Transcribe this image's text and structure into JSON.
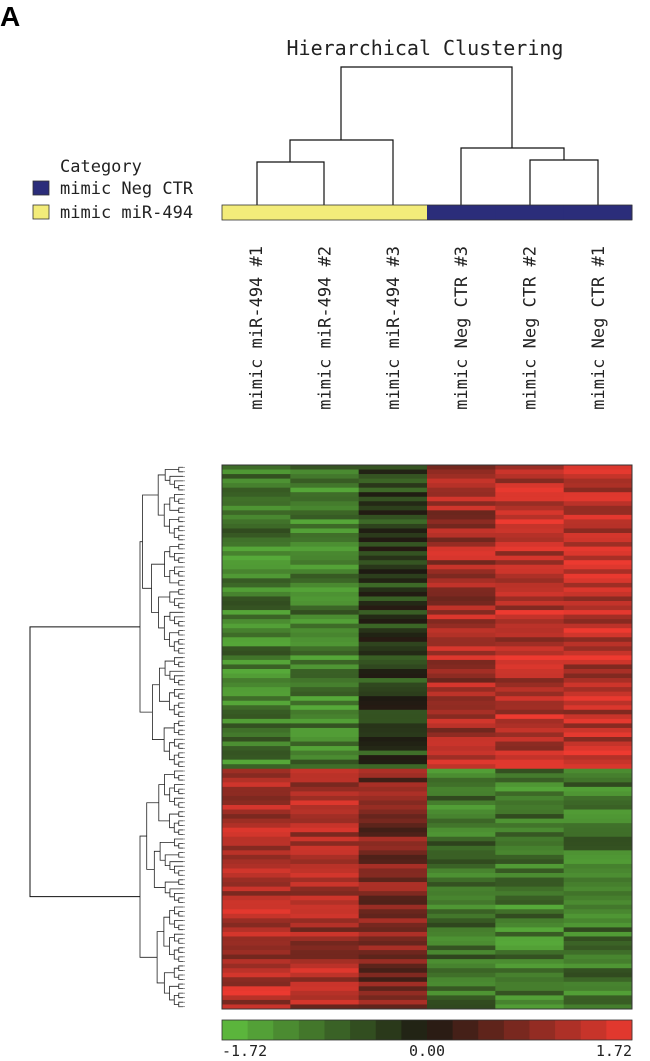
{
  "panel_label": "A",
  "chart_data": {
    "type": "heatmap",
    "title": "Hierarchical Clustering",
    "legend": {
      "title": "Category",
      "items": [
        {
          "label": "mimic Neg CTR",
          "color": "#2b2d7a"
        },
        {
          "label": "mimic miR-494",
          "color": "#f3ec7a"
        }
      ],
      "placement": "top-left"
    },
    "columns": [
      {
        "label": "mimic miR-494 #1",
        "category": "mimic miR-494"
      },
      {
        "label": "mimic miR-494 #2",
        "category": "mimic miR-494"
      },
      {
        "label": "mimic miR-494 #3",
        "category": "mimic miR-494"
      },
      {
        "label": "mimic Neg CTR #3",
        "category": "mimic Neg CTR"
      },
      {
        "label": "mimic Neg CTR #2",
        "category": "mimic Neg CTR"
      },
      {
        "label": "mimic Neg CTR #1",
        "category": "mimic Neg CTR"
      }
    ],
    "color_scale": {
      "min": -1.72,
      "mid": 0.0,
      "max": 1.72,
      "tick_labels": [
        "-1.72",
        "0.00",
        "1.72"
      ],
      "colors": [
        "#5fbf3f",
        "#1e1a12",
        "#ee3a30"
      ]
    },
    "row_count": 120,
    "row_dendrogram": true,
    "column_dendrogram": true,
    "blocks": [
      {
        "rows": 67,
        "values": [
          -1.0,
          -1.0,
          -0.4,
          1.1,
          1.3,
          1.3
        ]
      },
      {
        "rows": 53,
        "values": [
          1.2,
          1.1,
          0.7,
          -0.9,
          -1.0,
          -0.9
        ]
      }
    ]
  }
}
